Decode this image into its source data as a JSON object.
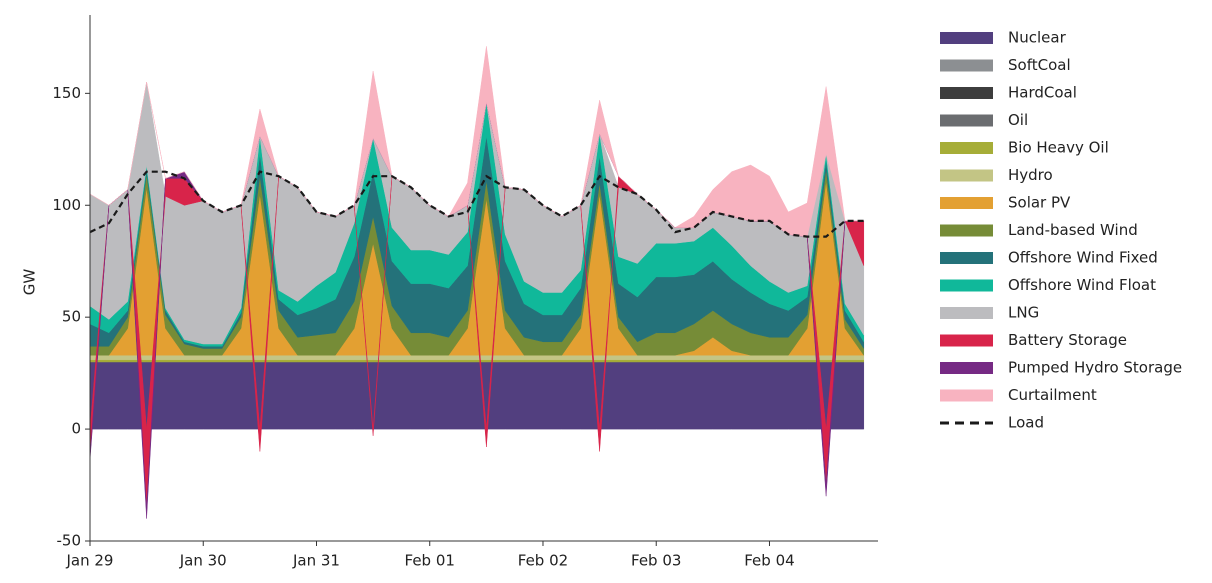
{
  "chart_data": {
    "type": "stacked_area",
    "y_label": "GW",
    "x": [
      0,
      4,
      8,
      12,
      16,
      20,
      24,
      28,
      32,
      36,
      40,
      44,
      48,
      52,
      56,
      60,
      64,
      68,
      72,
      76,
      80,
      84,
      88,
      92,
      96,
      100,
      104,
      108,
      112,
      116,
      120,
      124,
      128,
      132,
      136,
      140,
      144,
      148,
      152,
      156,
      160,
      164
    ],
    "xlim": [
      0,
      167
    ],
    "xticks": [
      {
        "value": 0,
        "label": "Jan 29"
      },
      {
        "value": 24,
        "label": "Jan 30"
      },
      {
        "value": 48,
        "label": "Jan 31"
      },
      {
        "value": 72,
        "label": "Feb 01"
      },
      {
        "value": 96,
        "label": "Feb 02"
      },
      {
        "value": 120,
        "label": "Feb 03"
      },
      {
        "value": 144,
        "label": "Feb 04"
      }
    ],
    "ylim": [
      -50,
      185
    ],
    "yticks": [
      -50,
      0,
      50,
      100,
      150
    ],
    "series": [
      {
        "name": "Nuclear",
        "color": "#523f7f",
        "values": [
          30,
          30,
          30,
          30,
          30,
          30,
          30,
          30,
          30,
          30,
          30,
          30,
          30,
          30,
          30,
          30,
          30,
          30,
          30,
          30,
          30,
          30,
          30,
          30,
          30,
          30,
          30,
          30,
          30,
          30,
          30,
          30,
          30,
          30,
          30,
          30,
          30,
          30,
          30,
          30,
          30,
          30
        ]
      },
      {
        "name": "SoftCoal",
        "color": "#8c8f92",
        "values": [
          0,
          0,
          0,
          0,
          0,
          0,
          0,
          0,
          0,
          0,
          0,
          0,
          0,
          0,
          0,
          0,
          0,
          0,
          0,
          0,
          0,
          0,
          0,
          0,
          0,
          0,
          0,
          0,
          0,
          0,
          0,
          0,
          0,
          0,
          0,
          0,
          0,
          0,
          0,
          0,
          0,
          0
        ]
      },
      {
        "name": "HardCoal",
        "color": "#3d3d3d",
        "values": [
          0,
          0,
          0,
          0,
          0,
          0,
          0,
          0,
          0,
          0,
          0,
          0,
          0,
          0,
          0,
          0,
          0,
          0,
          0,
          0,
          0,
          0,
          0,
          0,
          0,
          0,
          0,
          0,
          0,
          0,
          0,
          0,
          0,
          0,
          0,
          0,
          0,
          0,
          0,
          0,
          0,
          0
        ]
      },
      {
        "name": "Oil",
        "color": "#6b6d70",
        "values": [
          0,
          0,
          0,
          0,
          0,
          0,
          0,
          0,
          0,
          0,
          0,
          0,
          0,
          0,
          0,
          0,
          0,
          0,
          0,
          0,
          0,
          0,
          0,
          0,
          0,
          0,
          0,
          0,
          0,
          0,
          0,
          0,
          0,
          0,
          0,
          0,
          0,
          0,
          0,
          0,
          0,
          0
        ]
      },
      {
        "name": "Bio Heavy Oil",
        "color": "#a6ad38",
        "values": [
          1,
          1,
          1,
          1,
          1,
          1,
          1,
          1,
          1,
          1,
          1,
          1,
          1,
          1,
          1,
          1,
          1,
          1,
          1,
          1,
          1,
          1,
          1,
          1,
          1,
          1,
          1,
          1,
          1,
          1,
          1,
          1,
          1,
          1,
          1,
          1,
          1,
          1,
          1,
          1,
          1,
          1
        ]
      },
      {
        "name": "Hydro",
        "color": "#c3c585",
        "values": [
          2,
          2,
          2,
          2,
          2,
          2,
          2,
          2,
          2,
          2,
          2,
          2,
          2,
          2,
          2,
          2,
          2,
          2,
          2,
          2,
          2,
          2,
          2,
          2,
          2,
          2,
          2,
          2,
          2,
          2,
          2,
          2,
          2,
          2,
          2,
          2,
          2,
          2,
          2,
          2,
          2,
          2
        ]
      },
      {
        "name": "Solar PV",
        "color": "#e3a032",
        "values": [
          0,
          0,
          12,
          75,
          12,
          0,
          0,
          0,
          12,
          72,
          12,
          0,
          0,
          0,
          12,
          50,
          12,
          0,
          0,
          0,
          12,
          70,
          12,
          0,
          0,
          0,
          12,
          72,
          12,
          0,
          0,
          0,
          2,
          8,
          2,
          0,
          0,
          0,
          12,
          78,
          12,
          0
        ]
      },
      {
        "name": "Land-based Wind",
        "color": "#768c37",
        "values": [
          4,
          4,
          5,
          6,
          6,
          5,
          3,
          3,
          5,
          8,
          8,
          8,
          9,
          10,
          12,
          12,
          10,
          10,
          10,
          8,
          8,
          8,
          8,
          8,
          6,
          6,
          6,
          5,
          5,
          6,
          10,
          10,
          12,
          12,
          12,
          10,
          8,
          8,
          6,
          5,
          4,
          3
        ]
      },
      {
        "name": "Offshore Wind Fixed",
        "color": "#24727a",
        "values": [
          10,
          6,
          3,
          2,
          2,
          1,
          1,
          1,
          2,
          10,
          5,
          10,
          12,
          15,
          20,
          20,
          20,
          22,
          22,
          22,
          20,
          20,
          22,
          15,
          12,
          12,
          12,
          12,
          15,
          20,
          25,
          25,
          22,
          22,
          20,
          18,
          15,
          12,
          8,
          4,
          4,
          3
        ]
      },
      {
        "name": "Offshore Wind Float",
        "color": "#10b89a",
        "values": [
          8,
          6,
          4,
          2,
          1,
          1,
          1,
          1,
          2,
          8,
          4,
          6,
          10,
          12,
          15,
          15,
          15,
          15,
          15,
          15,
          15,
          15,
          12,
          10,
          10,
          10,
          8,
          10,
          12,
          15,
          15,
          15,
          15,
          15,
          15,
          12,
          10,
          8,
          5,
          3,
          3,
          3
        ]
      },
      {
        "name": "LNG",
        "color": "#bcbcbf",
        "values": [
          50,
          51,
          50,
          37,
          50,
          60,
          64,
          59,
          46,
          0,
          51,
          51,
          33,
          25,
          8,
          0,
          23,
          28,
          20,
          17,
          12,
          0,
          21,
          41,
          39,
          34,
          29,
          0,
          31,
          31,
          15,
          7,
          6,
          7,
          13,
          20,
          27,
          26,
          22,
          0,
          37,
          31
        ]
      },
      {
        "name": "Battery Storage",
        "color": "#d8244a",
        "values": [
          -12,
          0,
          0,
          -35,
          8,
          12,
          0,
          0,
          0,
          -10,
          0,
          0,
          0,
          0,
          0,
          -3,
          0,
          0,
          0,
          0,
          0,
          -8,
          0,
          0,
          0,
          0,
          0,
          -10,
          5,
          0,
          0,
          0,
          0,
          0,
          0,
          0,
          0,
          0,
          0,
          -25,
          0,
          20
        ]
      },
      {
        "name": "Pumped Hydro Storage",
        "color": "#762a84",
        "values": [
          -2,
          0,
          0,
          -5,
          0,
          3,
          0,
          0,
          0,
          0,
          0,
          0,
          0,
          0,
          0,
          0,
          0,
          0,
          0,
          0,
          0,
          0,
          0,
          0,
          0,
          0,
          0,
          0,
          0,
          0,
          0,
          0,
          0,
          0,
          0,
          0,
          0,
          0,
          0,
          -5,
          0,
          0
        ]
      },
      {
        "name": "Curtailment",
        "color": "#f8b3c0",
        "values": [
          0,
          0,
          0,
          0,
          0,
          0,
          0,
          0,
          0,
          12,
          0,
          0,
          0,
          0,
          0,
          30,
          0,
          0,
          0,
          0,
          10,
          25,
          0,
          0,
          0,
          0,
          0,
          15,
          0,
          0,
          0,
          0,
          5,
          10,
          20,
          25,
          20,
          10,
          15,
          30,
          0,
          0
        ]
      }
    ],
    "load": {
      "name": "Load",
      "color": "#1a1a1a",
      "values": [
        88,
        92,
        105,
        115,
        115,
        112,
        102,
        97,
        100,
        115,
        113,
        108,
        97,
        95,
        100,
        113,
        113,
        108,
        100,
        95,
        97,
        113,
        108,
        107,
        100,
        95,
        100,
        113,
        108,
        105,
        98,
        88,
        90,
        97,
        95,
        93,
        93,
        87,
        86,
        86,
        93,
        93
      ]
    }
  }
}
